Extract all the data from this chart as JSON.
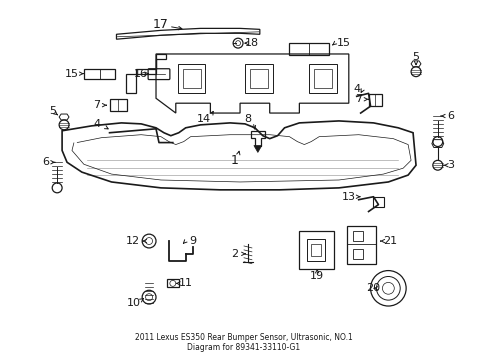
{
  "bg_color": "#ffffff",
  "line_color": "#1a1a1a",
  "title": "2011 Lexus ES350 Rear Bumper Sensor, Ultrasonic, NO.1\nDiagram for 89341-33110-G1",
  "fig_w": 4.89,
  "fig_h": 3.6,
  "dpi": 100
}
